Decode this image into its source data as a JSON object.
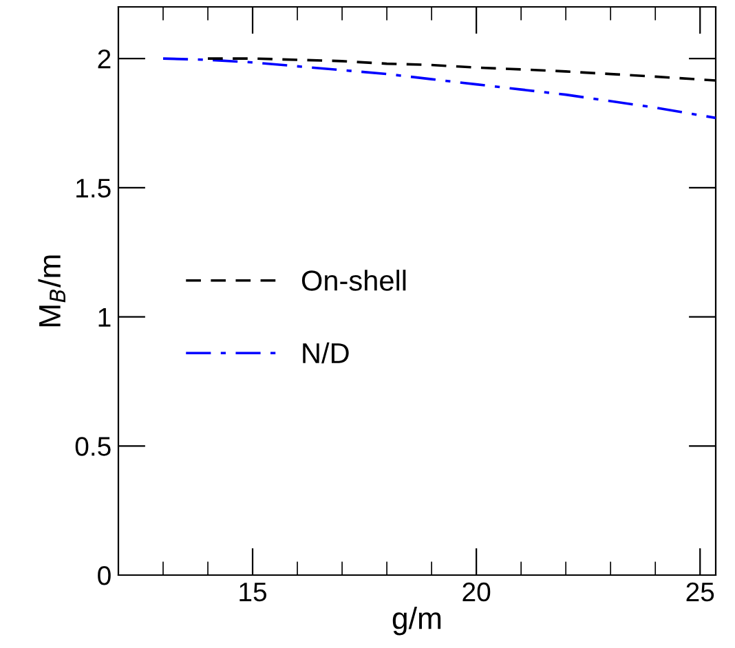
{
  "chart_data": {
    "type": "line",
    "xlabel": "g/m",
    "ylabel": "M$_{B}$/m",
    "xlim": [
      12,
      25.35
    ],
    "ylim": [
      0,
      2.2
    ],
    "xticks": [
      15,
      20,
      25
    ],
    "yticks": [
      0,
      0.5,
      1,
      1.5,
      2
    ],
    "grid": false,
    "legend": "center left",
    "marker": "none",
    "series": [
      {
        "name": "On-shell",
        "color": "#000000",
        "line_style": "dashed",
        "x": [
          14,
          15,
          16,
          17,
          18,
          19,
          20,
          21,
          22,
          23,
          24,
          25.35
        ],
        "values": [
          2.0,
          2.0,
          1.995,
          1.99,
          1.98,
          1.975,
          1.965,
          1.958,
          1.95,
          1.94,
          1.93,
          1.915
        ]
      },
      {
        "name": "N/D",
        "color": "#0000ff",
        "line_style": "dashdot",
        "x": [
          13,
          14,
          15,
          16,
          17,
          18,
          19,
          20,
          21,
          22,
          23,
          24,
          25.35
        ],
        "values": [
          2.0,
          1.995,
          1.985,
          1.97,
          1.955,
          1.94,
          1.92,
          1.9,
          1.88,
          1.86,
          1.835,
          1.81,
          1.77
        ]
      }
    ]
  }
}
